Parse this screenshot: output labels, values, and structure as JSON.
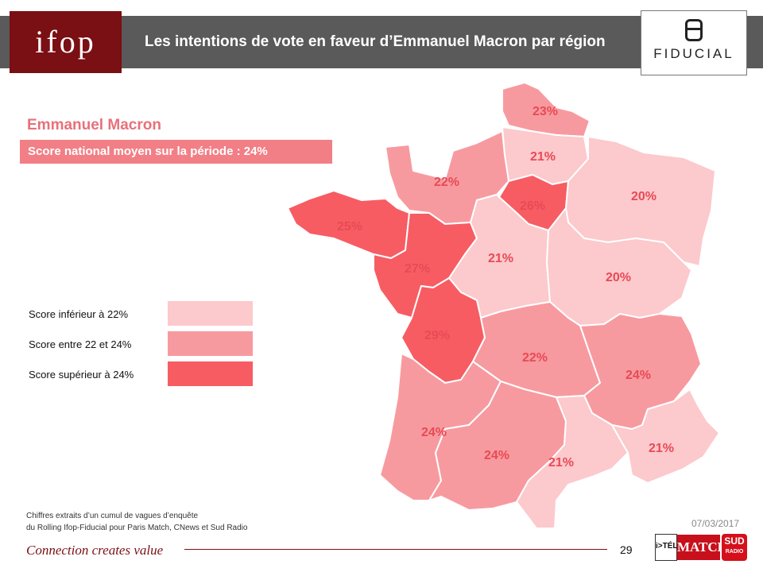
{
  "header": {
    "title": "Les intentions de vote en faveur d’Emmanuel Macron par région",
    "ifop_logo": "ifop",
    "partner_logo": "FIDUCIAL"
  },
  "candidate": "Emmanuel Macron",
  "national": "Score national  moyen sur la période : 24%",
  "colors": {
    "low": "#fcc9cc",
    "mid": "#f79a9f",
    "high": "#f75c63",
    "accent": "#7a0f14",
    "label": "#e84a55"
  },
  "legend": [
    {
      "label": "Score inférieur à 22%",
      "category": "low"
    },
    {
      "label": "Score entre 22 et 24%",
      "category": "mid"
    },
    {
      "label": "Score supérieur à 24%",
      "category": "high"
    }
  ],
  "regions": [
    {
      "key": "nord",
      "value": "23%",
      "category": "mid"
    },
    {
      "key": "picardie",
      "value": "21%",
      "category": "low"
    },
    {
      "key": "normandie",
      "value": "22%",
      "category": "mid"
    },
    {
      "key": "idf",
      "value": "26%",
      "category": "high"
    },
    {
      "key": "est",
      "value": "20%",
      "category": "low"
    },
    {
      "key": "bretagne",
      "value": "25%",
      "category": "high"
    },
    {
      "key": "pays_loire",
      "value": "27%",
      "category": "high"
    },
    {
      "key": "centre",
      "value": "21%",
      "category": "low"
    },
    {
      "key": "bourgogne",
      "value": "20%",
      "category": "low"
    },
    {
      "key": "poitou",
      "value": "29%",
      "category": "high"
    },
    {
      "key": "limousin_auv",
      "value": "22%",
      "category": "mid"
    },
    {
      "key": "rhone_alpes",
      "value": "24%",
      "category": "mid"
    },
    {
      "key": "aquitaine",
      "value": "24%",
      "category": "mid"
    },
    {
      "key": "midi_pyr",
      "value": "24%",
      "category": "mid"
    },
    {
      "key": "languedoc",
      "value": "21%",
      "category": "low"
    },
    {
      "key": "paca",
      "value": "21%",
      "category": "low"
    }
  ],
  "source": [
    "Chiffres extraits d’un cumul de vagues d’enquête",
    "du Rolling Ifop-Fiducial pour Paris Match, CNews et Sud Radio"
  ],
  "date": "07/03/2017",
  "tagline": "Connection creates value",
  "page_number": "29",
  "partners": {
    "itele": "i>TÉLÉ",
    "match": "MATCH",
    "sud": "SUD",
    "radio": "RADIO"
  }
}
